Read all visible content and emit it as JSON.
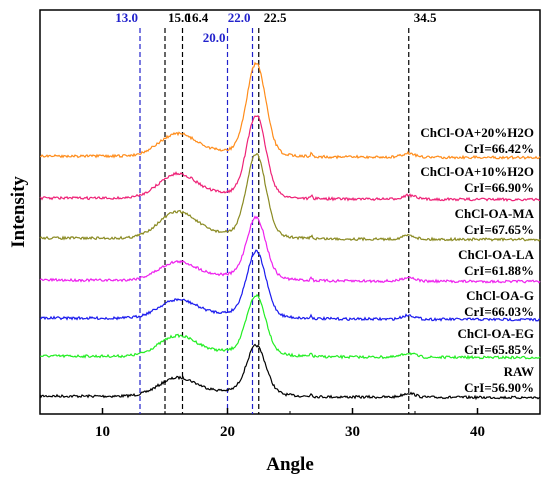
{
  "chart_data": {
    "type": "line",
    "xlabel": "Angle",
    "ylabel": "Intensity",
    "xlim": [
      5,
      45
    ],
    "x_ticks": [
      10,
      20,
      30,
      40
    ],
    "y_ticks_shown": false,
    "legend": "none",
    "grid": false,
    "reference_lines": [
      {
        "x": 13.0,
        "label": "13.0",
        "color": "#2222cc"
      },
      {
        "x": 15.0,
        "label": "15.0",
        "color": "#000000"
      },
      {
        "x": 16.4,
        "label": "16.4",
        "color": "#000000"
      },
      {
        "x": 20.0,
        "label": "20.0",
        "color": "#2222cc"
      },
      {
        "x": 22.0,
        "label": "22.0",
        "color": "#2222cc"
      },
      {
        "x": 22.5,
        "label": "22.5",
        "color": "#000000"
      },
      {
        "x": 34.5,
        "label": "34.5",
        "color": "#000000"
      }
    ],
    "series": [
      {
        "name": "RAW",
        "crl": "CrI=56.90%",
        "color": "#000000"
      },
      {
        "name": "ChCl-OA-EG",
        "crl": "CrI=65.85%",
        "color": "#22ee22"
      },
      {
        "name": "ChCl-OA-G",
        "crl": "CrI=66.03%",
        "color": "#1a1aee"
      },
      {
        "name": "ChCl-OA-LA",
        "crl": "CrI=61.88%",
        "color": "#ee22ee"
      },
      {
        "name": "ChCl-OA-MA",
        "crl": "CrI=67.65%",
        "color": "#8a8a22"
      },
      {
        "name": "ChCl-OA+10%H2O",
        "crl": "CrI=66.90%",
        "color": "#ee2277"
      },
      {
        "name": "ChCl-OA+20%H2O",
        "crl": "CrI=66.42%",
        "color": "#ff8c1a"
      }
    ]
  }
}
